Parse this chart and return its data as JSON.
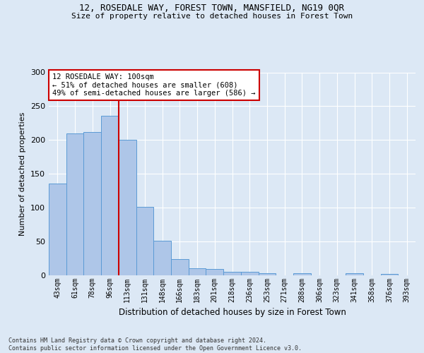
{
  "title_line1": "12, ROSEDALE WAY, FOREST TOWN, MANSFIELD, NG19 0QR",
  "title_line2": "Size of property relative to detached houses in Forest Town",
  "xlabel": "Distribution of detached houses by size in Forest Town",
  "ylabel": "Number of detached properties",
  "categories": [
    "43sqm",
    "61sqm",
    "78sqm",
    "96sqm",
    "113sqm",
    "131sqm",
    "148sqm",
    "166sqm",
    "183sqm",
    "201sqm",
    "218sqm",
    "236sqm",
    "253sqm",
    "271sqm",
    "288sqm",
    "306sqm",
    "323sqm",
    "341sqm",
    "358sqm",
    "376sqm",
    "393sqm"
  ],
  "values": [
    136,
    210,
    212,
    236,
    200,
    101,
    51,
    24,
    10,
    9,
    5,
    5,
    3,
    0,
    3,
    0,
    0,
    3,
    0,
    2,
    0
  ],
  "bar_color": "#aec6e8",
  "bar_edge_color": "#5b9bd5",
  "vline_x_index": 3.5,
  "vline_color": "#cc0000",
  "annotation_text": "12 ROSEDALE WAY: 100sqm\n← 51% of detached houses are smaller (608)\n49% of semi-detached houses are larger (586) →",
  "annotation_box_color": "#ffffff",
  "annotation_box_edge_color": "#cc0000",
  "ylim": [
    0,
    300
  ],
  "yticks": [
    0,
    50,
    100,
    150,
    200,
    250,
    300
  ],
  "footnote": "Contains HM Land Registry data © Crown copyright and database right 2024.\nContains public sector information licensed under the Open Government Licence v3.0.",
  "bg_color": "#dce8f5",
  "plot_bg_color": "#dce8f5",
  "grid_color": "#ffffff"
}
